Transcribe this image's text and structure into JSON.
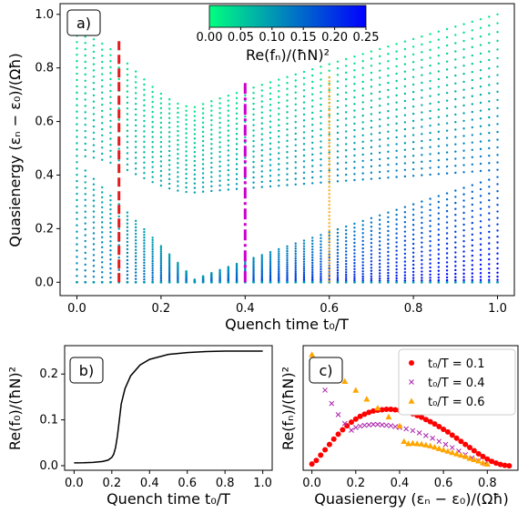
{
  "chart_data": [
    {
      "panel": "a)",
      "type": "scatter",
      "xlabel": "Quench time t₀/T",
      "ylabel": "Quasienergy (εₙ − ε₀)/(Ωħ)",
      "xlim": [
        -0.04,
        1.04
      ],
      "ylim": [
        -0.05,
        1.04
      ],
      "xticks": [
        "0.0",
        "0.2",
        "0.4",
        "0.6",
        "0.8",
        "1.0"
      ],
      "yticks": [
        "0.0",
        "0.2",
        "0.4",
        "0.6",
        "0.8",
        "1.0"
      ],
      "colorbar": {
        "label": "Re(fₙ)/(ħN)²",
        "range": [
          0.0,
          0.25
        ],
        "ticks": [
          "0.00",
          "0.05",
          "0.10",
          "0.15",
          "0.20",
          "0.25"
        ],
        "colors": [
          "#00ff80",
          "#0000ff"
        ]
      },
      "levels": 40,
      "description_params": {
        "bowl_min_x": 0.3,
        "right_top": 1.0,
        "right_bottom_step": 0.025
      },
      "markers": [
        {
          "x": 0.1,
          "ymin": 0.0,
          "ymax": 0.9,
          "color": "#e41a1c",
          "style": "dashed"
        },
        {
          "x": 0.4,
          "ymin": 0.0,
          "ymax": 0.75,
          "color": "#cc00cc",
          "style": "dashdot"
        },
        {
          "x": 0.6,
          "ymin": 0.0,
          "ymax": 0.77,
          "color": "#ffa500",
          "style": "dotted"
        }
      ]
    },
    {
      "panel": "b)",
      "type": "line",
      "xlabel": "Quench time t₀/T",
      "ylabel": "Re(f₀)/(ħN)²",
      "xlim": [
        -0.05,
        1.05
      ],
      "ylim": [
        -0.01,
        0.262
      ],
      "xticks": [
        "0.0",
        "0.2",
        "0.4",
        "0.6",
        "0.8",
        "1.0"
      ],
      "yticks": [
        "0.0",
        "0.1",
        "0.2"
      ],
      "x": [
        0.0,
        0.05,
        0.1,
        0.15,
        0.18,
        0.2,
        0.21,
        0.22,
        0.23,
        0.24,
        0.25,
        0.27,
        0.3,
        0.35,
        0.4,
        0.5,
        0.6,
        0.7,
        0.8,
        0.9,
        1.0
      ],
      "y": [
        0.006,
        0.0063,
        0.007,
        0.009,
        0.012,
        0.018,
        0.025,
        0.04,
        0.065,
        0.1,
        0.135,
        0.168,
        0.196,
        0.22,
        0.232,
        0.243,
        0.247,
        0.249,
        0.25,
        0.25,
        0.25
      ],
      "color": "#000000"
    },
    {
      "panel": "c)",
      "type": "scatter",
      "xlabel": "Quasienergy (εₙ − ε₀)/(Ωħ)",
      "ylabel": "Re(fₙ)/(ħN)²",
      "xlim": [
        -0.04,
        0.94
      ],
      "ylim": [
        -0.01,
        0.27
      ],
      "xticks": [
        "0.0",
        "0.2",
        "0.4",
        "0.6",
        "0.8"
      ],
      "legend_position": "top-right",
      "series": [
        {
          "name": "t₀/T = 0.1",
          "color": "#ff0000",
          "marker": "circle",
          "x": [
            0.0,
            0.02,
            0.04,
            0.06,
            0.08,
            0.1,
            0.12,
            0.14,
            0.16,
            0.18,
            0.2,
            0.22,
            0.24,
            0.26,
            0.28,
            0.3,
            0.32,
            0.34,
            0.36,
            0.38,
            0.4,
            0.42,
            0.44,
            0.46,
            0.48,
            0.5,
            0.52,
            0.54,
            0.56,
            0.58,
            0.6,
            0.62,
            0.64,
            0.66,
            0.68,
            0.7,
            0.72,
            0.74,
            0.76,
            0.78,
            0.8,
            0.82,
            0.84,
            0.86,
            0.88,
            0.9
          ],
          "y": [
            0.004,
            0.012,
            0.024,
            0.036,
            0.048,
            0.06,
            0.071,
            0.081,
            0.09,
            0.098,
            0.105,
            0.111,
            0.116,
            0.12,
            0.123,
            0.125,
            0.126,
            0.127,
            0.127,
            0.126,
            0.125,
            0.123,
            0.12,
            0.117,
            0.113,
            0.109,
            0.104,
            0.099,
            0.094,
            0.088,
            0.082,
            0.076,
            0.069,
            0.062,
            0.055,
            0.048,
            0.041,
            0.034,
            0.027,
            0.021,
            0.015,
            0.01,
            0.006,
            0.003,
            0.001,
            0.0
          ]
        },
        {
          "name": "t₀/T = 0.4",
          "color": "#aa22aa",
          "marker": "x",
          "x": [
            0.0,
            0.03,
            0.06,
            0.09,
            0.12,
            0.15,
            0.18,
            0.2,
            0.22,
            0.24,
            0.26,
            0.28,
            0.3,
            0.32,
            0.34,
            0.36,
            0.38,
            0.4,
            0.43,
            0.46,
            0.49,
            0.52,
            0.55,
            0.58,
            0.61,
            0.64,
            0.67,
            0.7,
            0.73,
            0.76,
            0.79
          ],
          "y": [
            0.23,
            0.2,
            0.17,
            0.14,
            0.115,
            0.095,
            0.08,
            0.086,
            0.089,
            0.091,
            0.092,
            0.093,
            0.093,
            0.092,
            0.091,
            0.09,
            0.088,
            0.086,
            0.083,
            0.079,
            0.074,
            0.068,
            0.062,
            0.055,
            0.048,
            0.041,
            0.033,
            0.025,
            0.018,
            0.011,
            0.005
          ]
        },
        {
          "name": "t₀/T = 0.6",
          "color": "#ffa500",
          "marker": "triangle",
          "x": [
            0.0,
            0.05,
            0.1,
            0.15,
            0.2,
            0.25,
            0.3,
            0.35,
            0.4,
            0.42,
            0.44,
            0.46,
            0.48,
            0.5,
            0.52,
            0.54,
            0.56,
            0.58,
            0.6,
            0.62,
            0.64,
            0.66,
            0.68,
            0.7,
            0.72,
            0.74,
            0.76,
            0.78,
            0.8
          ],
          "y": [
            0.25,
            0.23,
            0.21,
            0.19,
            0.17,
            0.15,
            0.13,
            0.11,
            0.09,
            0.055,
            0.05,
            0.051,
            0.05,
            0.049,
            0.047,
            0.045,
            0.042,
            0.039,
            0.036,
            0.033,
            0.03,
            0.027,
            0.024,
            0.021,
            0.017,
            0.014,
            0.011,
            0.007,
            0.004
          ]
        }
      ]
    }
  ]
}
